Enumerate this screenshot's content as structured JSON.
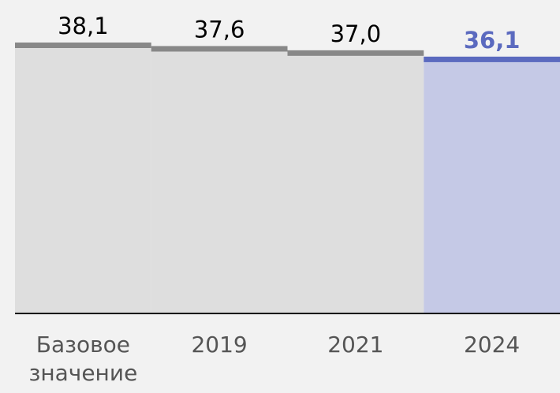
{
  "chart_data": {
    "type": "bar",
    "categories": [
      "Базовое значение",
      "2019",
      "2021",
      "2024"
    ],
    "values": [
      38.1,
      37.6,
      37.0,
      36.1
    ],
    "value_labels": [
      "38,1",
      "37,6",
      "37,0",
      "36,1"
    ],
    "colors": [
      "#888888",
      "#888888",
      "#888888",
      "#5b6abf"
    ],
    "fills": [
      "#dedede",
      "#dedede",
      "#dedede",
      "#c5c9e6"
    ],
    "label_colors": [
      "#000000",
      "#000000",
      "#000000",
      "#5b6abf"
    ],
    "ylim": [
      0,
      40
    ],
    "grid": false
  }
}
